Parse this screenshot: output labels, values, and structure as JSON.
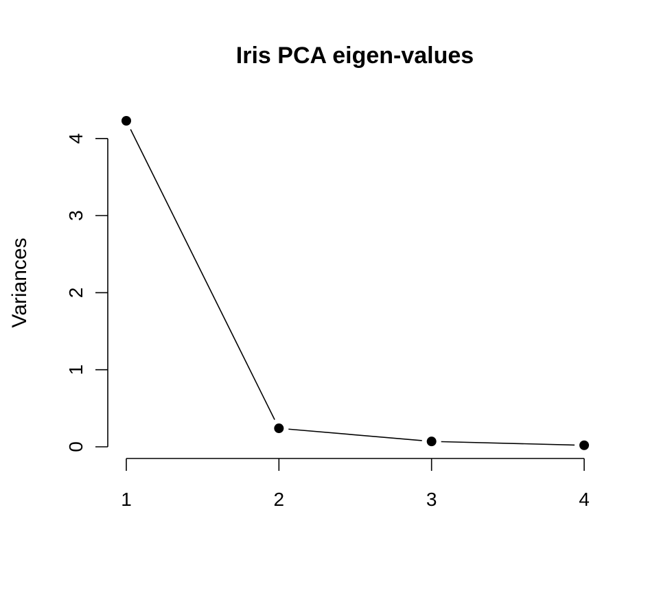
{
  "chart_data": {
    "type": "line",
    "title": "Iris PCA eigen-values",
    "xlabel": "",
    "ylabel": "Variances",
    "x": [
      1,
      2,
      3,
      4
    ],
    "values": [
      4.23,
      0.24,
      0.07,
      0.02
    ],
    "xlim": [
      1,
      4
    ],
    "ylim": [
      0,
      4.23
    ],
    "x_ticks": [
      1,
      2,
      3,
      4
    ],
    "y_ticks": [
      0,
      1,
      2,
      3,
      4
    ],
    "x_tick_labels": [
      "1",
      "2",
      "3",
      "4"
    ],
    "y_tick_labels": [
      "0",
      "1",
      "2",
      "3",
      "4"
    ],
    "grid": false,
    "marker": "filled-circle",
    "color": "#000000"
  }
}
